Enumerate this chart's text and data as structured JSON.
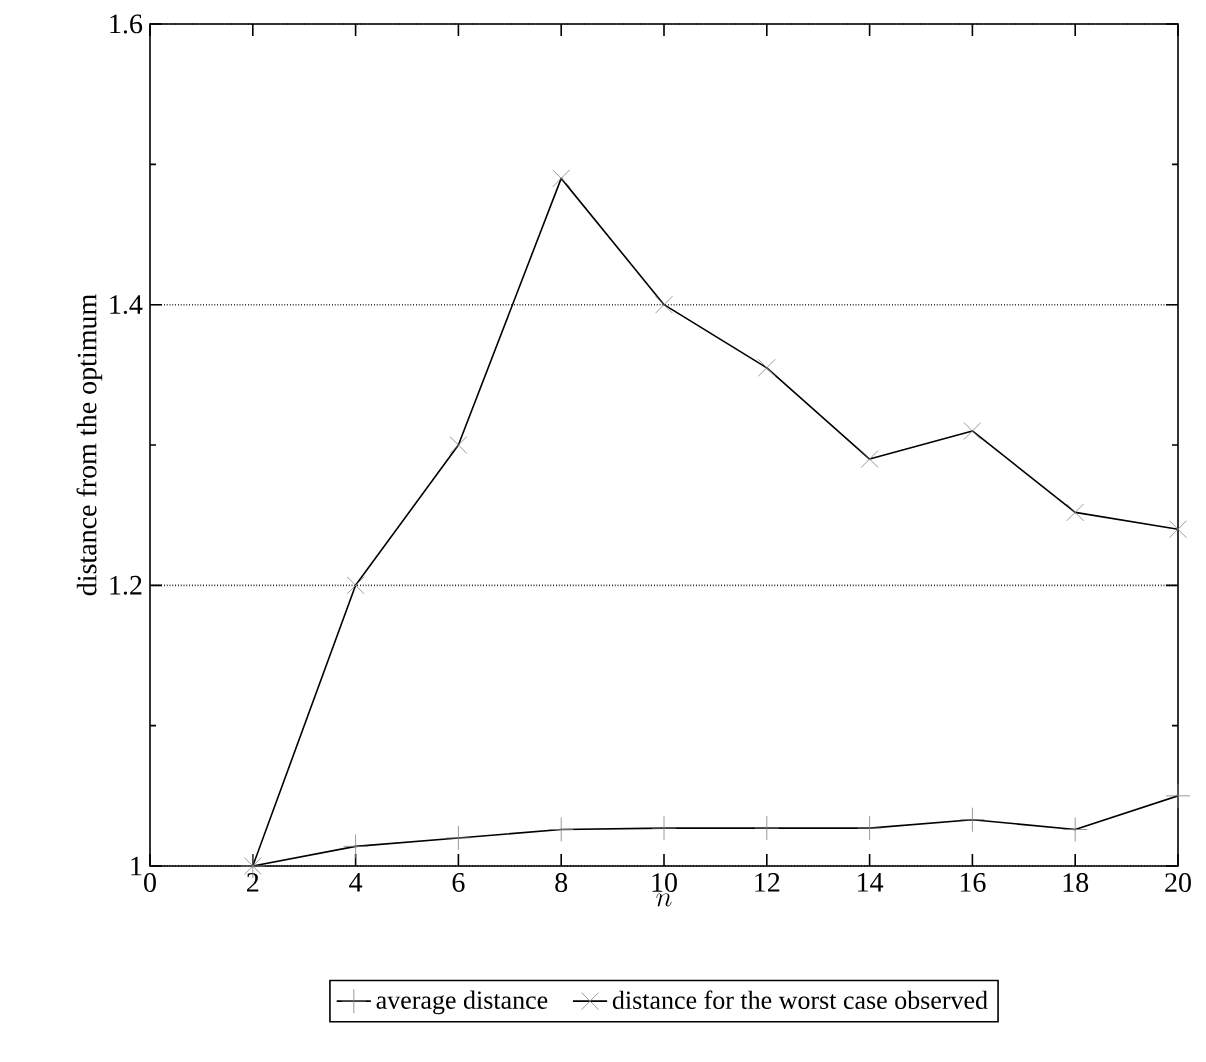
{
  "chart_data": {
    "type": "line",
    "xlabel": "n",
    "ylabel": "distance from the optimum",
    "x": [
      2,
      4,
      6,
      8,
      10,
      12,
      14,
      16,
      18,
      20
    ],
    "series": [
      {
        "name": "average distance",
        "color": "#000000",
        "marker": "plus",
        "values": [
          1.0,
          1.014,
          1.02,
          1.026,
          1.027,
          1.027,
          1.027,
          1.033,
          1.026,
          1.05
        ]
      },
      {
        "name": "distance for the worst case observed",
        "color": "#000000",
        "marker": "cross",
        "values": [
          1.0,
          1.2,
          1.3,
          1.49,
          1.4,
          1.355,
          1.29,
          1.31,
          1.252,
          1.24
        ]
      }
    ],
    "xlim": [
      0,
      20
    ],
    "ylim": [
      1,
      1.6
    ],
    "xticks": [
      0,
      2,
      4,
      6,
      8,
      10,
      12,
      14,
      16,
      18,
      20
    ],
    "yticks": [
      1,
      {
        "value": 1.1,
        "label": null
      },
      1.2,
      {
        "value": 1.3,
        "label": null
      },
      1.4,
      {
        "value": 1.5,
        "label": null
      },
      1.6
    ],
    "grid": "y",
    "legend": "bottom",
    "line_style": "solid"
  }
}
